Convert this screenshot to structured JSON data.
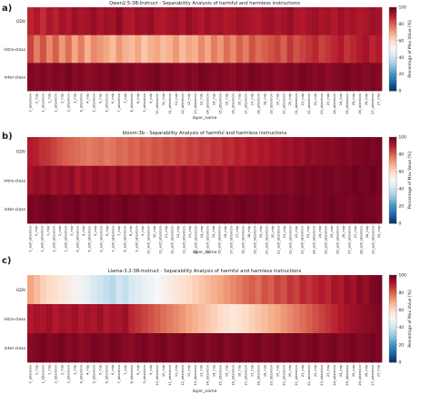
{
  "chart_data": [
    {
      "type": "heatmap",
      "panel_label": "a)",
      "title": "Qwen2.5-3B-Instruct - Separability Analysis of harmful and harmless instructions",
      "xlabel": "layer_name",
      "ylabel": "",
      "rows": [
        "GDV",
        "intra-class",
        "inter-class"
      ],
      "column_labels": [
        "0_attention",
        "0_mlp",
        "1_attention",
        "1_mlp",
        "2_attention",
        "2_mlp",
        "3_attention",
        "3_mlp",
        "4_attention",
        "4_mlp",
        "5_attention",
        "5_mlp",
        "6_attention",
        "6_mlp",
        "7_attention",
        "7_mlp",
        "8_attention",
        "8_mlp",
        "9_attention",
        "9_mlp",
        "10_attention",
        "10_mlp",
        "11_attention",
        "11_mlp",
        "12_attention",
        "12_mlp",
        "13_attention",
        "13_mlp",
        "14_attention",
        "14_mlp",
        "15_attention",
        "15_mlp",
        "16_attention",
        "16_mlp",
        "17_attention",
        "17_mlp",
        "18_attention",
        "18_mlp",
        "19_attention",
        "19_mlp",
        "20_attention",
        "20_mlp",
        "21_attention",
        "21_mlp",
        "22_attention",
        "22_mlp",
        "23_attention",
        "23_mlp",
        "24_attention",
        "24_mlp",
        "25_attention",
        "25_mlp",
        "26_attention",
        "26_mlp",
        "27_attention",
        "27_mlp"
      ],
      "values": [
        [
          88,
          90,
          87,
          91,
          89,
          92,
          90,
          93,
          91,
          92,
          94,
          91,
          93,
          92,
          95,
          91,
          90,
          93,
          92,
          94,
          91,
          90,
          92,
          93,
          91,
          94,
          92,
          90,
          93,
          91,
          92,
          90,
          91,
          93,
          92,
          91,
          90,
          92,
          93,
          91,
          92,
          94,
          91,
          90,
          92,
          93,
          91,
          92,
          90,
          93,
          91,
          92,
          90,
          91,
          93,
          92
        ],
        [
          84,
          76,
          82,
          74,
          80,
          72,
          78,
          70,
          76,
          68,
          74,
          72,
          70,
          66,
          72,
          68,
          66,
          70,
          64,
          68,
          70,
          66,
          68,
          72,
          66,
          70,
          68,
          74,
          70,
          76,
          72,
          78,
          74,
          80,
          76,
          82,
          78,
          80,
          82,
          84,
          80,
          86,
          82,
          84,
          86,
          88,
          84,
          86,
          88,
          90,
          86,
          88,
          90,
          92,
          88,
          90
        ],
        [
          97,
          96,
          97,
          95,
          97,
          96,
          98,
          96,
          97,
          95,
          96,
          97,
          96,
          98,
          97,
          96,
          97,
          95,
          96,
          97,
          98,
          96,
          97,
          96,
          95,
          97,
          96,
          98,
          97,
          96,
          97,
          96,
          95,
          97,
          96,
          98,
          97,
          96,
          97,
          95,
          96,
          97,
          96,
          98,
          97,
          96,
          97,
          95,
          96,
          97,
          98,
          96,
          97,
          96,
          97,
          96
        ]
      ],
      "colorbar": {
        "label": "Percentage of Max Value [%]",
        "ticks": [
          0,
          20,
          40,
          60,
          80,
          100
        ],
        "range": [
          0,
          100
        ]
      }
    },
    {
      "type": "heatmap",
      "panel_label": "b)",
      "title": "bloom-3b - Separability Analysis of harmful and harmless instructions",
      "xlabel": "layer_name",
      "ylabel": "",
      "rows": [
        "GDV",
        "intra-class",
        "inter-class"
      ],
      "column_labels": [
        "0_self_attention",
        "0_mlp",
        "1_self_attention",
        "1_mlp",
        "2_self_attention",
        "2_mlp",
        "3_self_attention",
        "3_mlp",
        "4_self_attention",
        "4_mlp",
        "5_self_attention",
        "5_mlp",
        "6_self_attention",
        "6_mlp",
        "7_self_attention",
        "7_mlp",
        "8_self_attention",
        "8_mlp",
        "9_self_attention",
        "9_mlp",
        "10_self_attention",
        "10_mlp",
        "11_self_attention",
        "11_mlp",
        "12_self_attention",
        "12_mlp",
        "13_self_attention",
        "13_mlp",
        "14_self_attention",
        "14_mlp",
        "15_self_attention",
        "15_mlp",
        "16_self_attention",
        "16_mlp",
        "17_self_attention",
        "17_mlp",
        "18_self_attention",
        "18_mlp",
        "19_self_attention",
        "19_mlp",
        "20_self_attention",
        "20_mlp",
        "21_self_attention",
        "21_mlp",
        "22_self_attention",
        "22_mlp",
        "23_self_attention",
        "23_mlp",
        "24_self_attention",
        "24_mlp",
        "25_self_attention",
        "25_mlp",
        "26_self_attention",
        "26_mlp",
        "27_self_attention",
        "27_mlp",
        "28_self_attention",
        "28_mlp",
        "29_self_attention",
        "29_mlp"
      ],
      "values": [
        [
          90,
          89,
          87,
          86,
          84,
          82,
          80,
          79,
          78,
          77,
          76,
          77,
          78,
          76,
          77,
          79,
          78,
          80,
          79,
          81,
          80,
          82,
          81,
          83,
          82,
          84,
          83,
          85,
          84,
          86,
          85,
          87,
          86,
          88,
          87,
          89,
          88,
          90,
          89,
          91,
          90,
          92,
          91,
          93,
          92,
          94,
          93,
          95,
          94,
          95,
          96,
          95,
          96,
          97,
          96,
          97,
          97,
          98,
          97,
          98
        ],
        [
          92,
          94,
          93,
          95,
          92,
          94,
          93,
          95,
          91,
          94,
          92,
          95,
          93,
          94,
          92,
          95,
          93,
          94,
          92,
          95,
          93,
          94,
          95,
          93,
          94,
          92,
          95,
          93,
          94,
          92,
          95,
          93,
          94,
          92,
          95,
          93,
          94,
          95,
          96,
          95,
          96,
          97,
          96,
          97,
          96,
          97,
          98,
          97,
          98,
          97,
          98,
          98,
          97,
          98,
          98,
          99,
          98,
          98,
          99,
          98
        ],
        [
          98,
          97,
          98,
          99,
          98,
          97,
          98,
          98,
          99,
          97,
          98,
          98,
          99,
          98,
          97,
          98,
          99,
          98,
          98,
          97,
          98,
          99,
          98,
          98,
          97,
          98,
          99,
          98,
          98,
          97,
          98,
          99,
          98,
          98,
          97,
          98,
          99,
          98,
          98,
          97,
          98,
          99,
          98,
          98,
          97,
          98,
          99,
          98,
          98,
          97,
          98,
          99,
          98,
          98,
          97,
          98,
          99,
          98,
          98,
          97
        ]
      ],
      "colorbar": {
        "label": "Percentage of Max Value [%]",
        "ticks": [
          0,
          20,
          40,
          60,
          80,
          100
        ],
        "range": [
          0,
          100
        ]
      }
    },
    {
      "type": "heatmap",
      "panel_label": "c)",
      "title": "Llama-3.2-3B-Instruct - Separability Analysis of harmful and harmless instructions",
      "xlabel": "layer_name",
      "ylabel": "",
      "rows": [
        "GDV",
        "intra-class",
        "inter-class"
      ],
      "column_labels": [
        "0_attention",
        "0_mlp",
        "1_attention",
        "1_mlp",
        "2_attention",
        "2_mlp",
        "3_attention",
        "3_mlp",
        "4_attention",
        "4_mlp",
        "5_attention",
        "5_mlp",
        "6_attention",
        "6_mlp",
        "7_attention",
        "7_mlp",
        "8_attention",
        "8_mlp",
        "9_attention",
        "9_mlp",
        "10_attention",
        "10_mlp",
        "11_attention",
        "11_mlp",
        "12_attention",
        "12_mlp",
        "13_attention",
        "13_mlp",
        "14_attention",
        "14_mlp",
        "15_attention",
        "15_mlp",
        "16_attention",
        "16_mlp",
        "17_attention",
        "17_mlp",
        "18_attention",
        "18_mlp",
        "19_attention",
        "19_mlp",
        "20_attention",
        "20_mlp",
        "21_attention",
        "21_mlp",
        "22_attention",
        "22_mlp",
        "23_attention",
        "23_mlp",
        "24_attention",
        "24_mlp",
        "25_attention",
        "25_mlp",
        "26_attention",
        "26_mlp",
        "27_attention",
        "27_mlp"
      ],
      "values": [
        [
          70,
          66,
          62,
          60,
          58,
          56,
          54,
          52,
          48,
          46,
          42,
          40,
          38,
          36,
          40,
          38,
          42,
          44,
          46,
          48,
          50,
          52,
          54,
          56,
          58,
          60,
          62,
          64,
          66,
          68,
          70,
          72,
          74,
          76,
          78,
          80,
          78,
          82,
          80,
          84,
          82,
          86,
          84,
          88,
          86,
          88,
          90,
          88,
          92,
          90,
          94,
          92,
          96,
          94,
          97,
          98
        ],
        [
          90,
          92,
          91,
          93,
          90,
          92,
          91,
          93,
          90,
          92,
          91,
          93,
          90,
          92,
          91,
          93,
          88,
          86,
          84,
          82,
          80,
          78,
          76,
          74,
          72,
          70,
          68,
          66,
          64,
          62,
          60,
          58,
          56,
          58,
          60,
          62,
          64,
          66,
          68,
          70,
          72,
          74,
          76,
          78,
          80,
          82,
          84,
          86,
          88,
          90,
          92,
          93,
          94,
          95,
          96,
          97
        ],
        [
          96,
          97,
          98,
          96,
          97,
          98,
          96,
          97,
          95,
          96,
          98,
          97,
          96,
          98,
          97,
          96,
          95,
          97,
          98,
          96,
          97,
          98,
          96,
          97,
          98,
          96,
          97,
          98,
          96,
          97,
          98,
          96,
          97,
          98,
          96,
          97,
          98,
          96,
          97,
          98,
          96,
          97,
          98,
          96,
          97,
          98,
          96,
          97,
          98,
          96,
          97,
          98,
          96,
          97,
          98,
          97
        ]
      ],
      "colorbar": {
        "label": "Percentage of Max Value [%]",
        "ticks": [
          0,
          20,
          40,
          60,
          80,
          100
        ],
        "range": [
          0,
          100
        ]
      }
    }
  ]
}
